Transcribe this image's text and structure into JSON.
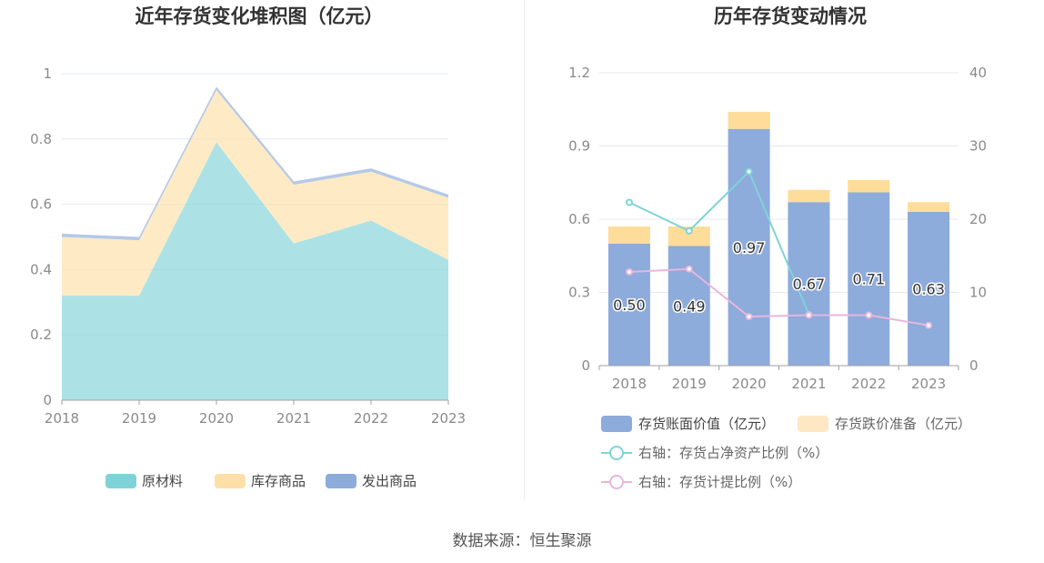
{
  "chart_data": [
    {
      "type": "area",
      "stacked": true,
      "title": "近年存货变化堆积图（亿元）",
      "categories": [
        "2018",
        "2019",
        "2020",
        "2021",
        "2022",
        "2023"
      ],
      "y_ticks": [
        "0",
        "0.2",
        "0.4",
        "0.6",
        "0.8",
        "1"
      ],
      "ylim": [
        0,
        1
      ],
      "grid": true,
      "legend_position": "bottom",
      "series": [
        {
          "name": "原材料",
          "color": "#7fd3d8",
          "values": [
            0.32,
            0.32,
            0.79,
            0.48,
            0.55,
            0.43
          ]
        },
        {
          "name": "库存商品",
          "color": "#fde0a8",
          "values": [
            0.18,
            0.17,
            0.16,
            0.18,
            0.15,
            0.19
          ]
        },
        {
          "name": "发出商品",
          "color": "#8dabdb",
          "values": [
            0.01,
            0.01,
            0.01,
            0.01,
            0.01,
            0.01
          ]
        }
      ]
    },
    {
      "type": "bar",
      "stacked": true,
      "title": "历年存货变动情况",
      "categories": [
        "2018",
        "2019",
        "2020",
        "2021",
        "2022",
        "2023"
      ],
      "y_ticks": [
        "0",
        "0.3",
        "0.6",
        "0.9",
        "1.2"
      ],
      "ylim": [
        0,
        1.2
      ],
      "y2_ticks": [
        "0",
        "10",
        "20",
        "30",
        "40"
      ],
      "y2lim": [
        0,
        40
      ],
      "grid": true,
      "legend_position": "bottom",
      "bar_series": [
        {
          "name": "存货账面价值（亿元）",
          "color": "#8dabdb",
          "values": [
            0.5,
            0.49,
            0.97,
            0.67,
            0.71,
            0.63
          ],
          "labels": [
            "0.50",
            "0.49",
            "0.97",
            "0.67",
            "0.71",
            "0.63"
          ]
        },
        {
          "name": "存货跌价准备（亿元）",
          "color": "#fedc9a",
          "legend_color": "#fee8c4",
          "values": [
            0.07,
            0.08,
            0.07,
            0.05,
            0.05,
            0.04
          ]
        }
      ],
      "line_series": [
        {
          "name": "右轴：存货占净资产比例（%）",
          "color": "#7fd3d8",
          "axis": "right",
          "values": [
            22.3,
            18.4,
            26.5,
            7.0,
            null,
            null
          ]
        },
        {
          "name": "右轴：存货计提比例（%）",
          "color": "#e8b6dd",
          "axis": "right",
          "values": [
            12.8,
            13.2,
            6.7,
            6.9,
            6.9,
            5.5
          ]
        }
      ]
    }
  ],
  "footer": {
    "source": "数据来源：恒生聚源"
  }
}
